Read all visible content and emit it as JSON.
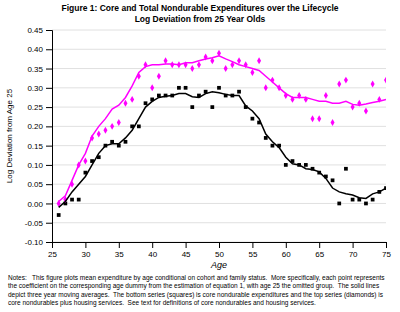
{
  "chart_data": {
    "type": "scatter",
    "title": "Figure 1: Core and Total Nondurable Expenditures over the Lifecycle",
    "subtitle": "Log Deviation from 25 Year Olds",
    "x_label": "Age",
    "y_label": "Log Deviation from Age 25",
    "annotations": [
      "Notes:   This figure plots mean expenditure by age conditional on cohort and family status.  More specifically, each point represents the coefficient on the corresponding age dummy from the estimation of equation 1, with age 25 the omitted group.  The solid lines depict three year moving averages.  The bottom series (squares) is core nondurable expenditures and the top series (diamonds) is core nondurables plus housing services.  See text for definitions of core nondurables and housing services."
    ],
    "xlim": [
      25,
      75
    ],
    "ylim": [
      -0.1,
      0.45
    ],
    "xticks": [
      25,
      30,
      35,
      40,
      45,
      50,
      55,
      60,
      65,
      70,
      75
    ],
    "yticks": [
      {
        "value": -0.1,
        "label": "-0.10"
      },
      {
        "value": -0.05,
        "label": "-0.05"
      },
      {
        "value": 0.0,
        "label": "0.00"
      },
      {
        "value": 0.05,
        "label": "0.05"
      },
      {
        "value": 0.1,
        "label": "0.10"
      },
      {
        "value": 0.15,
        "label": "0.15"
      },
      {
        "value": 0.2,
        "label": "0.20"
      },
      {
        "value": 0.25,
        "label": "0.25"
      },
      {
        "value": 0.3,
        "label": "0.30"
      },
      {
        "value": 0.35,
        "label": "0.35"
      },
      {
        "value": 0.4,
        "label": "0.40"
      },
      {
        "value": 0.45,
        "label": "0.45"
      }
    ],
    "grid": "y",
    "x": [
      26,
      27,
      28,
      29,
      30,
      31,
      32,
      33,
      34,
      35,
      36,
      37,
      38,
      39,
      40,
      41,
      42,
      43,
      44,
      45,
      46,
      47,
      48,
      49,
      50,
      51,
      52,
      53,
      54,
      55,
      56,
      57,
      58,
      59,
      60,
      61,
      62,
      63,
      64,
      65,
      66,
      67,
      68,
      69,
      70,
      71,
      72,
      73,
      74,
      75
    ],
    "series": [
      {
        "type": "scatter",
        "marker": "square",
        "color": "#000000",
        "values": [
          -0.03,
          0.0,
          0.01,
          0.01,
          0.08,
          0.11,
          0.12,
          0.15,
          0.16,
          0.15,
          0.16,
          0.2,
          0.2,
          0.26,
          0.27,
          0.28,
          0.28,
          0.28,
          0.3,
          0.3,
          0.25,
          0.28,
          0.29,
          0.25,
          0.3,
          0.28,
          0.28,
          0.29,
          0.25,
          0.22,
          0.21,
          0.17,
          0.15,
          0.15,
          0.1,
          0.11,
          0.1,
          0.1,
          0.09,
          0.08,
          0.07,
          0.06,
          0.0,
          0.09,
          0.01,
          0.01,
          0.0,
          0.01,
          0.03,
          0.04
        ]
      },
      {
        "type": "scatter",
        "marker": "diamond",
        "color": "#ff00ff",
        "values": [
          0.0,
          0.01,
          0.05,
          0.1,
          0.11,
          0.17,
          0.18,
          0.19,
          0.2,
          0.21,
          0.26,
          0.27,
          0.33,
          0.36,
          0.3,
          0.33,
          0.37,
          0.36,
          0.36,
          0.36,
          0.35,
          0.36,
          0.38,
          0.37,
          0.39,
          0.35,
          0.36,
          0.37,
          0.36,
          0.34,
          0.37,
          0.3,
          0.32,
          0.3,
          0.28,
          0.27,
          0.28,
          0.27,
          0.22,
          0.22,
          0.28,
          0.21,
          0.31,
          0.32,
          0.25,
          0.26,
          0.24,
          0.31,
          0.27,
          0.32
        ]
      },
      {
        "type": "line",
        "line_style": "solid",
        "color": "#000000",
        "values": [
          -0.01,
          0.005,
          0.03,
          0.05,
          0.07,
          0.1,
          0.13,
          0.15,
          0.155,
          0.155,
          0.17,
          0.19,
          0.22,
          0.25,
          0.265,
          0.275,
          0.278,
          0.28,
          0.285,
          0.285,
          0.277,
          0.275,
          0.285,
          0.29,
          0.287,
          0.283,
          0.28,
          0.28,
          0.253,
          0.24,
          0.22,
          0.18,
          0.16,
          0.145,
          0.12,
          0.103,
          0.1,
          0.09,
          0.088,
          0.082,
          0.065,
          0.04,
          0.03,
          0.025,
          0.022,
          0.015,
          0.013,
          0.025,
          0.03,
          0.04
        ]
      },
      {
        "type": "line",
        "line_style": "solid",
        "color": "#ff00ff",
        "values": [
          0.005,
          0.02,
          0.06,
          0.1,
          0.13,
          0.175,
          0.2,
          0.22,
          0.245,
          0.255,
          0.275,
          0.305,
          0.34,
          0.355,
          0.36,
          0.36,
          0.362,
          0.362,
          0.36,
          0.365,
          0.365,
          0.37,
          0.375,
          0.378,
          0.383,
          0.375,
          0.368,
          0.36,
          0.355,
          0.35,
          0.345,
          0.33,
          0.315,
          0.3,
          0.285,
          0.275,
          0.275,
          0.275,
          0.27,
          0.265,
          0.265,
          0.26,
          0.26,
          0.265,
          0.257,
          0.255,
          0.258,
          0.262,
          0.265,
          0.27
        ]
      }
    ]
  }
}
